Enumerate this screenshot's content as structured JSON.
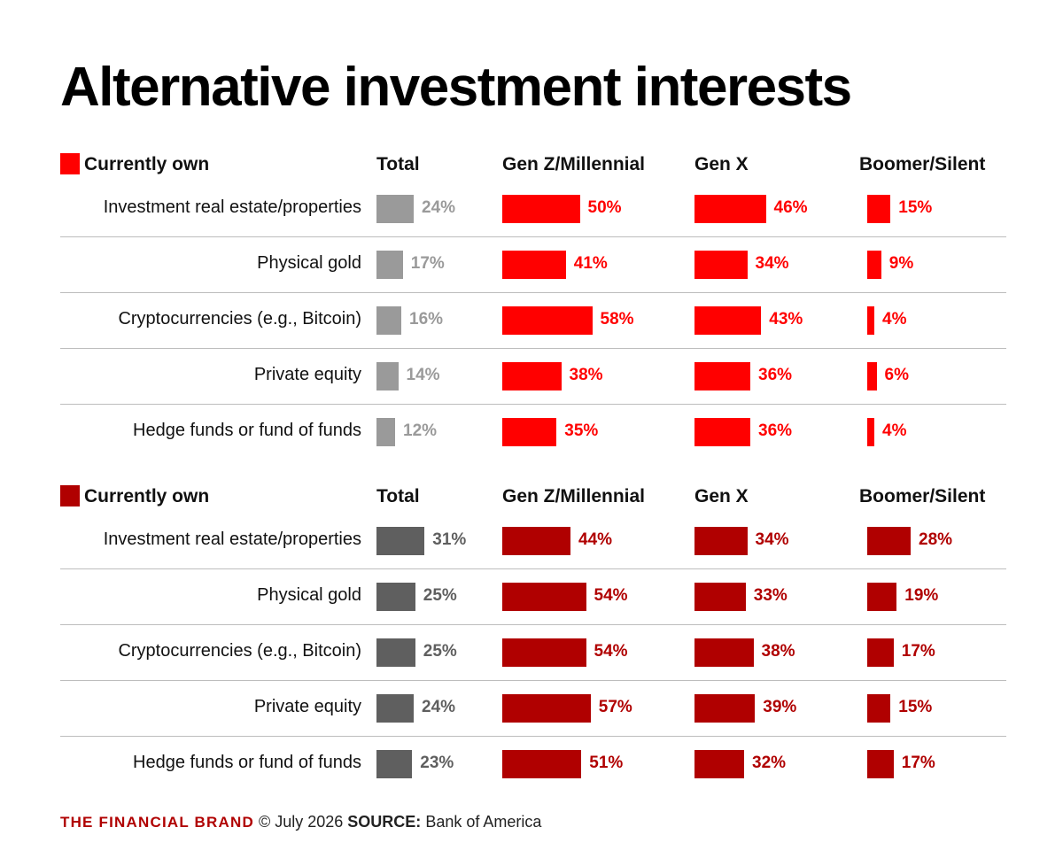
{
  "title": "Alternative investment interests",
  "columns": {
    "total": "Total",
    "genz": "Gen Z/Millennial",
    "genx": "Gen X",
    "boomer": "Boomer/Silent"
  },
  "colors": {
    "section1_total": "#9a9a9a",
    "section1_gens": "#ff0000",
    "section2_total": "#5f5f5f",
    "section2_gens": "#b00000"
  },
  "footer": {
    "brand": "THE FINANCIAL BRAND",
    "date": "© July 2026",
    "source_label": "SOURCE:",
    "source": "Bank of America"
  },
  "chart_data": [
    {
      "type": "bar",
      "section_label": "Currently own",
      "categories": [
        "Investment real estate/properties",
        "Physical gold",
        "Cryptocurrencies (e.g., Bitcoin)",
        "Private equity",
        "Hedge funds or fund of funds"
      ],
      "series": [
        {
          "name": "Total",
          "values": [
            24,
            17,
            16,
            14,
            12
          ]
        },
        {
          "name": "Gen Z/Millennial",
          "values": [
            50,
            41,
            58,
            38,
            35
          ]
        },
        {
          "name": "Gen X",
          "values": [
            46,
            34,
            43,
            36,
            36
          ]
        },
        {
          "name": "Boomer/Silent",
          "values": [
            15,
            9,
            4,
            6,
            4
          ]
        }
      ],
      "unit": "%"
    },
    {
      "type": "bar",
      "section_label": "Currently own",
      "categories": [
        "Investment real estate/properties",
        "Physical gold",
        "Cryptocurrencies (e.g., Bitcoin)",
        "Private equity",
        "Hedge funds or fund of funds"
      ],
      "series": [
        {
          "name": "Total",
          "values": [
            31,
            25,
            25,
            24,
            23
          ]
        },
        {
          "name": "Gen Z/Millennial",
          "values": [
            44,
            54,
            54,
            57,
            51
          ]
        },
        {
          "name": "Gen X",
          "values": [
            34,
            33,
            38,
            39,
            32
          ]
        },
        {
          "name": "Boomer/Silent",
          "values": [
            28,
            19,
            17,
            15,
            17
          ]
        }
      ],
      "unit": "%"
    }
  ]
}
